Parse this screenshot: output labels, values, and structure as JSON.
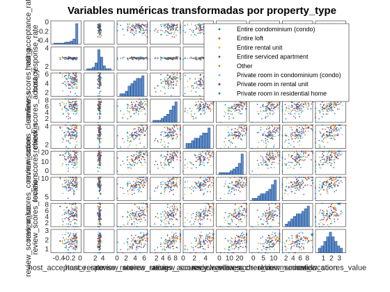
{
  "chart_data": {
    "type": "scatter",
    "subtype": "scatter-matrix",
    "title": "Variables numéricas transformadas por property_type",
    "variables": [
      {
        "name": "host_acceptance_rate",
        "range": [
          -0.55,
          0.02
        ],
        "ticks": [
          -0.4,
          -0.2,
          0
        ],
        "center": -0.05,
        "spread": 0.06,
        "skew": -1,
        "group": false,
        "hist": [
          1,
          1,
          1,
          1,
          2,
          2,
          3,
          5,
          20
        ]
      },
      {
        "name": "host_response_rate",
        "range": [
          -1,
          7
        ],
        "ticks": [
          2,
          4
        ],
        "center": 3.1,
        "spread": 0.15,
        "skew": 0,
        "group": false,
        "hist": [
          1,
          1,
          2,
          5,
          14,
          9,
          3,
          1,
          1
        ]
      },
      {
        "name": "review_scores_rating",
        "range": [
          0,
          6.7
        ],
        "ticks": [
          0,
          2,
          4,
          6
        ],
        "center": 4.6,
        "spread": 1.1,
        "skew": 0,
        "group": true,
        "hist": [
          1,
          1,
          2,
          4,
          5,
          6,
          7,
          7,
          8
        ]
      },
      {
        "name": "review_scores_accuracy",
        "range": [
          0,
          9.5
        ],
        "ticks": [
          2,
          4,
          6,
          8
        ],
        "center": 6.5,
        "spread": 1.5,
        "skew": 0,
        "group": true,
        "hist": [
          1,
          1,
          1,
          2,
          3,
          4,
          6,
          8,
          10
        ]
      },
      {
        "name": "review_scores_cleanliness",
        "range": [
          0,
          5.4
        ],
        "ticks": [
          0,
          2,
          4
        ],
        "center": 3.7,
        "spread": 0.9,
        "skew": 0,
        "group": true,
        "hist": [
          2,
          2,
          3,
          4,
          4,
          5,
          6,
          6,
          8
        ]
      },
      {
        "name": "review_scores_checkin",
        "range": [
          -3,
          27
        ],
        "ticks": [
          0,
          10,
          20
        ],
        "center": 20,
        "spread": 4.5,
        "skew": 0,
        "group": true,
        "hist": [
          1,
          1,
          1,
          1,
          2,
          3,
          4,
          6,
          11
        ]
      },
      {
        "name": "review_scores_communication",
        "range": [
          -2,
          13
        ],
        "ticks": [
          0,
          5,
          10
        ],
        "center": 9,
        "spread": 2.2,
        "skew": 0,
        "group": true,
        "hist": [
          1,
          1,
          2,
          3,
          3,
          4,
          5,
          7,
          9
        ]
      },
      {
        "name": "review_scores_location",
        "range": [
          1,
          9.5
        ],
        "ticks": [
          2,
          4,
          6,
          8
        ],
        "center": 5.5,
        "spread": 1.6,
        "skew": 0,
        "group": true,
        "hist": [
          1,
          2,
          3,
          4,
          5,
          5,
          6,
          7,
          8
        ]
      },
      {
        "name": "review_scores_value",
        "range": [
          0,
          3.8
        ],
        "ticks": [
          1,
          2,
          3
        ],
        "center": 1.9,
        "spread": 0.6,
        "skew": 0,
        "group": true,
        "hist": [
          2,
          3,
          5,
          7,
          9,
          7,
          5,
          3,
          2
        ]
      }
    ],
    "y_tick_labels": {
      "0": [
        "0",
        "-0.2",
        "-0.4"
      ],
      "1": [
        "4",
        "2"
      ],
      "2": [
        "6",
        "4",
        "2"
      ],
      "3": [
        "8",
        "6",
        "4",
        "2"
      ],
      "4": [
        "4",
        "2"
      ],
      "5": [
        "20",
        "10",
        "0"
      ],
      "6": [
        "10",
        "5"
      ],
      "7": [
        "8",
        "6",
        "4",
        "2"
      ],
      "8": [
        "3",
        "2",
        "1"
      ]
    },
    "series": [
      {
        "name": "Entire condominium (condo)",
        "color": "#0072BD"
      },
      {
        "name": "Entire loft",
        "color": "#D95319"
      },
      {
        "name": "Entire rental unit",
        "color": "#EDB120"
      },
      {
        "name": "Entire serviced apartment",
        "color": "#7E2F8E"
      },
      {
        "name": "Other",
        "color": "#77AC30"
      },
      {
        "name": "Private room in condominium (condo)",
        "color": "#4DBEEE"
      },
      {
        "name": "Private room in rental unit",
        "color": "#A2142F"
      },
      {
        "name": "Private room in residential home",
        "color": "#0072BD"
      }
    ],
    "legend_position": "top-right",
    "grid": false
  }
}
